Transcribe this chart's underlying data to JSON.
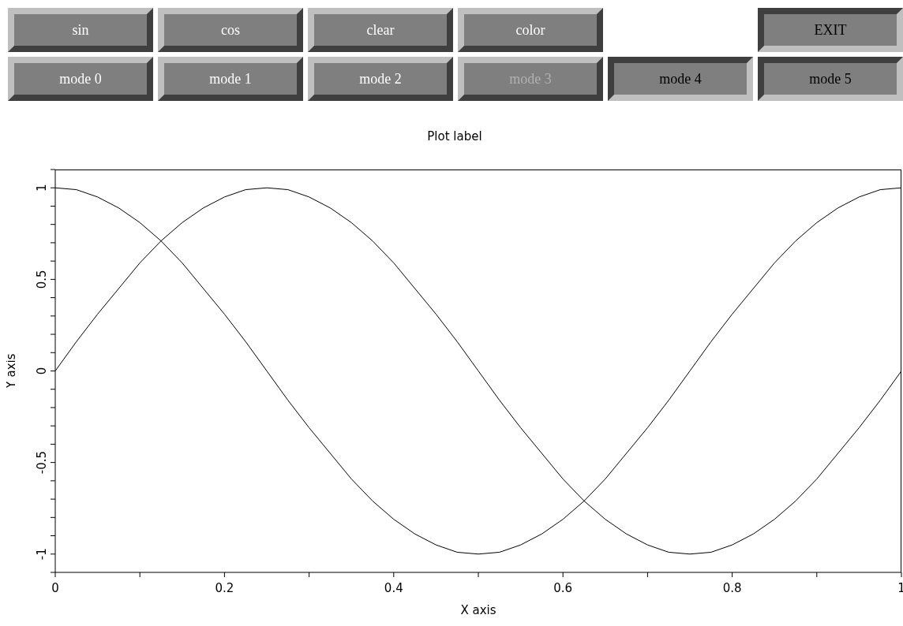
{
  "chart_data": {
    "type": "line",
    "title": "Plot label",
    "xlabel": "X axis",
    "ylabel": "Y axis",
    "annotations": [
      "sin",
      "cos",
      "clear",
      "color",
      "EXIT",
      "mode 0",
      "mode 1",
      "mode 2",
      "mode 3",
      "mode 4",
      "mode 5"
    ],
    "x": [
      0,
      0.025,
      0.05,
      0.075,
      0.1,
      0.125,
      0.15,
      0.175,
      0.2,
      0.225,
      0.25,
      0.275,
      0.3,
      0.325,
      0.35,
      0.375,
      0.4,
      0.425,
      0.45,
      0.475,
      0.5,
      0.525,
      0.55,
      0.575,
      0.6,
      0.625,
      0.65,
      0.675,
      0.7,
      0.725,
      0.75,
      0.775,
      0.8,
      0.825,
      0.85,
      0.875,
      0.9,
      0.925,
      0.95,
      0.975,
      1
    ],
    "series": [
      {
        "color": "#000000",
        "values": [
          0,
          0.16,
          0.31,
          0.45,
          0.59,
          0.71,
          0.81,
          0.89,
          0.95,
          0.99,
          1,
          0.99,
          0.95,
          0.89,
          0.81,
          0.71,
          0.59,
          0.45,
          0.31,
          0.16,
          0,
          -0.16,
          -0.31,
          -0.45,
          -0.59,
          -0.71,
          -0.81,
          -0.89,
          -0.95,
          -0.99,
          -1,
          -0.99,
          -0.95,
          -0.89,
          -0.81,
          -0.71,
          -0.59,
          -0.45,
          -0.31,
          -0.16,
          0
        ]
      },
      {
        "color": "#000000",
        "values": [
          1,
          0.99,
          0.95,
          0.89,
          0.81,
          0.71,
          0.59,
          0.45,
          0.31,
          0.16,
          0,
          -0.16,
          -0.31,
          -0.45,
          -0.59,
          -0.71,
          -0.81,
          -0.89,
          -0.95,
          -0.99,
          -1,
          -0.99,
          -0.95,
          -0.89,
          -0.81,
          -0.71,
          -0.59,
          -0.45,
          -0.31,
          -0.16,
          0,
          0.16,
          0.31,
          0.45,
          0.59,
          0.71,
          0.81,
          0.89,
          0.95,
          0.99,
          1
        ]
      }
    ],
    "xlim": [
      0,
      1
    ],
    "xticks": [
      0,
      {
        "value": 0.1,
        "label": null
      },
      0.2,
      {
        "value": 0.3,
        "label": null
      },
      0.4,
      {
        "value": 0.5,
        "label": null
      },
      0.6,
      {
        "value": 0.7,
        "label": null
      },
      0.8,
      {
        "value": 0.9,
        "label": null
      },
      1
    ],
    "ylim": [
      -1.1,
      1.1
    ],
    "yticks": [
      {
        "value": -1.1,
        "label": null
      },
      -1,
      {
        "value": -0.9,
        "label": null
      },
      {
        "value": -0.8,
        "label": null
      },
      {
        "value": -0.7,
        "label": null
      },
      {
        "value": -0.6,
        "label": null
      },
      -0.5,
      {
        "value": -0.4,
        "label": null
      },
      {
        "value": -0.3,
        "label": null
      },
      {
        "value": -0.2,
        "label": null
      },
      {
        "value": -0.1,
        "label": null
      },
      0,
      {
        "value": 0.1,
        "label": null
      },
      {
        "value": 0.2,
        "label": null
      },
      {
        "value": 0.3,
        "label": null
      },
      {
        "value": 0.4,
        "label": null
      },
      0.5,
      {
        "value": 0.6,
        "label": null
      },
      {
        "value": 0.7,
        "label": null
      },
      {
        "value": 0.8,
        "label": null
      },
      {
        "value": 0.9,
        "label": null
      },
      1,
      {
        "value": 1.1,
        "label": null
      }
    ],
    "grid": false,
    "legend": false,
    "marker": "none",
    "line_style": "solid"
  }
}
